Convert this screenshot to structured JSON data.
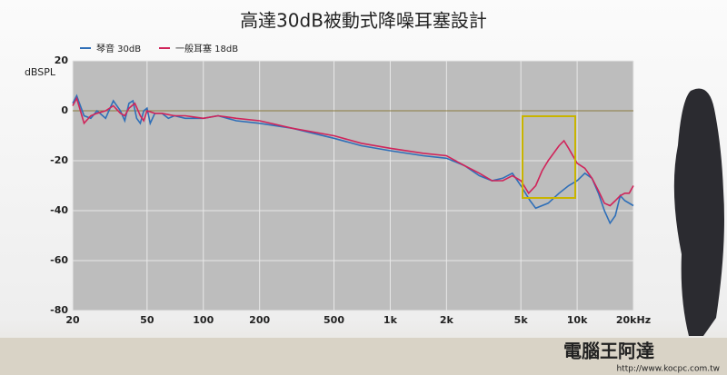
{
  "chart_data": {
    "type": "line",
    "title": "高達30dB被動式降噪耳塞設計",
    "ylabel": "dBSPL",
    "xscale": "log",
    "xlim": [
      20,
      20000
    ],
    "ylim": [
      -80,
      20
    ],
    "xticks": [
      20,
      50,
      100,
      200,
      500,
      {
        "value": 1000,
        "label": "1k"
      },
      {
        "value": 2000,
        "label": "2k"
      },
      {
        "value": 5000,
        "label": "5k"
      },
      {
        "value": 10000,
        "label": "10k"
      },
      {
        "value": 20000,
        "label": "20kHz"
      }
    ],
    "yticks": [
      20,
      0,
      -20,
      -40,
      -60,
      -80
    ],
    "grid": true,
    "legend": "top-left",
    "series": [
      {
        "name": "琴音 30dB",
        "color": "#2f6fb8",
        "x": [
          20,
          21,
          23,
          25,
          27,
          30,
          33,
          36,
          38,
          40,
          42,
          44,
          46,
          48,
          50,
          52,
          55,
          60,
          65,
          70,
          80,
          100,
          120,
          150,
          200,
          300,
          500,
          700,
          1000,
          1500,
          2000,
          2500,
          3000,
          3500,
          4000,
          4500,
          5000,
          5600,
          6000,
          7000,
          8000,
          9000,
          10000,
          11000,
          12000,
          13000,
          14000,
          15000,
          16000,
          17000,
          18000,
          20000
        ],
        "values": [
          3,
          6,
          -2,
          -3,
          0,
          -3,
          4,
          0,
          -4,
          3,
          4,
          -3,
          -5,
          0,
          1,
          -5,
          -1,
          -1,
          -3,
          -2,
          -3,
          -3,
          -2,
          -4,
          -5,
          -7,
          -11,
          -14,
          -16,
          -18,
          -19,
          -22,
          -26,
          -28,
          -27,
          -25,
          -30,
          -36,
          -39,
          -37,
          -33,
          -30,
          -28,
          -25,
          -27,
          -33,
          -40,
          -45,
          -42,
          -34,
          -36,
          -38
        ]
      },
      {
        "name": "一般耳塞  18dB",
        "color": "#d0245a",
        "x": [
          20,
          21,
          22,
          23,
          25,
          27,
          30,
          33,
          36,
          38,
          40,
          43,
          46,
          48,
          50,
          55,
          60,
          70,
          80,
          100,
          120,
          150,
          200,
          300,
          500,
          700,
          1000,
          1500,
          2000,
          2500,
          3000,
          3500,
          4000,
          4500,
          5000,
          5500,
          6000,
          6500,
          7000,
          8000,
          8500,
          9000,
          10000,
          11000,
          12000,
          13000,
          14000,
          15000,
          16000,
          17000,
          18000,
          19000,
          20000
        ],
        "values": [
          2,
          5,
          0,
          -5,
          -2,
          -1,
          0,
          2,
          -1,
          -2,
          1,
          3,
          -2,
          -4,
          0,
          -1,
          -1,
          -2,
          -2,
          -3,
          -2,
          -3,
          -4,
          -7,
          -10,
          -13,
          -15,
          -17,
          -18,
          -22,
          -25,
          -28,
          -28,
          -26,
          -28,
          -33,
          -30,
          -24,
          -20,
          -14,
          -12,
          -15,
          -21,
          -23,
          -27,
          -32,
          -37,
          -38,
          -36,
          -34,
          -33,
          -33,
          -30
        ]
      }
    ]
  },
  "watermark": {
    "brand": "電腦王阿達",
    "url": "http://www.kocpc.com.tw"
  }
}
